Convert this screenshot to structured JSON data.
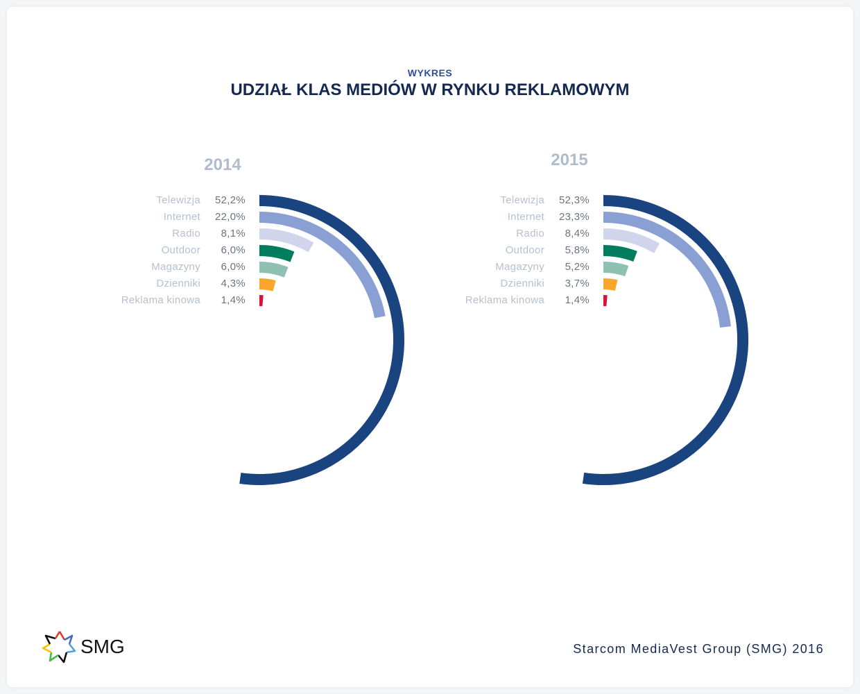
{
  "header": {
    "kicker": "WYKRES",
    "title": "UDZIAŁ KLAS MEDIÓW W RYNKU REKLAMOWYM"
  },
  "chart_data": [
    {
      "type": "radial-bar",
      "title": "2014",
      "unit": "%",
      "categories": [
        "Telewizja",
        "Internet",
        "Radio",
        "Outdoor",
        "Magazyny",
        "Dzienniki",
        "Reklama kinowa"
      ],
      "values": [
        52.2,
        22.0,
        8.1,
        6.0,
        6.0,
        4.3,
        1.4
      ],
      "value_labels": [
        "52,2%",
        "22,0%",
        "8,1%",
        "6,0%",
        "6,0%",
        "4,3%",
        "1,4%"
      ]
    },
    {
      "type": "radial-bar",
      "title": "2015",
      "unit": "%",
      "categories": [
        "Telewizja",
        "Internet",
        "Radio",
        "Outdoor",
        "Magazyny",
        "Dzienniki",
        "Reklama kinowa"
      ],
      "values": [
        52.3,
        23.3,
        8.4,
        5.8,
        5.2,
        3.7,
        1.4
      ],
      "value_labels": [
        "52,3%",
        "23,3%",
        "8,4%",
        "5,8%",
        "5,2%",
        "3,7%",
        "1,4%"
      ]
    }
  ],
  "colors": [
    "#1a4480",
    "#8a9fd4",
    "#d0d5ec",
    "#007c5e",
    "#8fc1b2",
    "#f9a72b",
    "#d6133e"
  ],
  "footer": {
    "logo_text": "SMG",
    "source": "Starcom MediaVest Group (SMG) 2016"
  }
}
